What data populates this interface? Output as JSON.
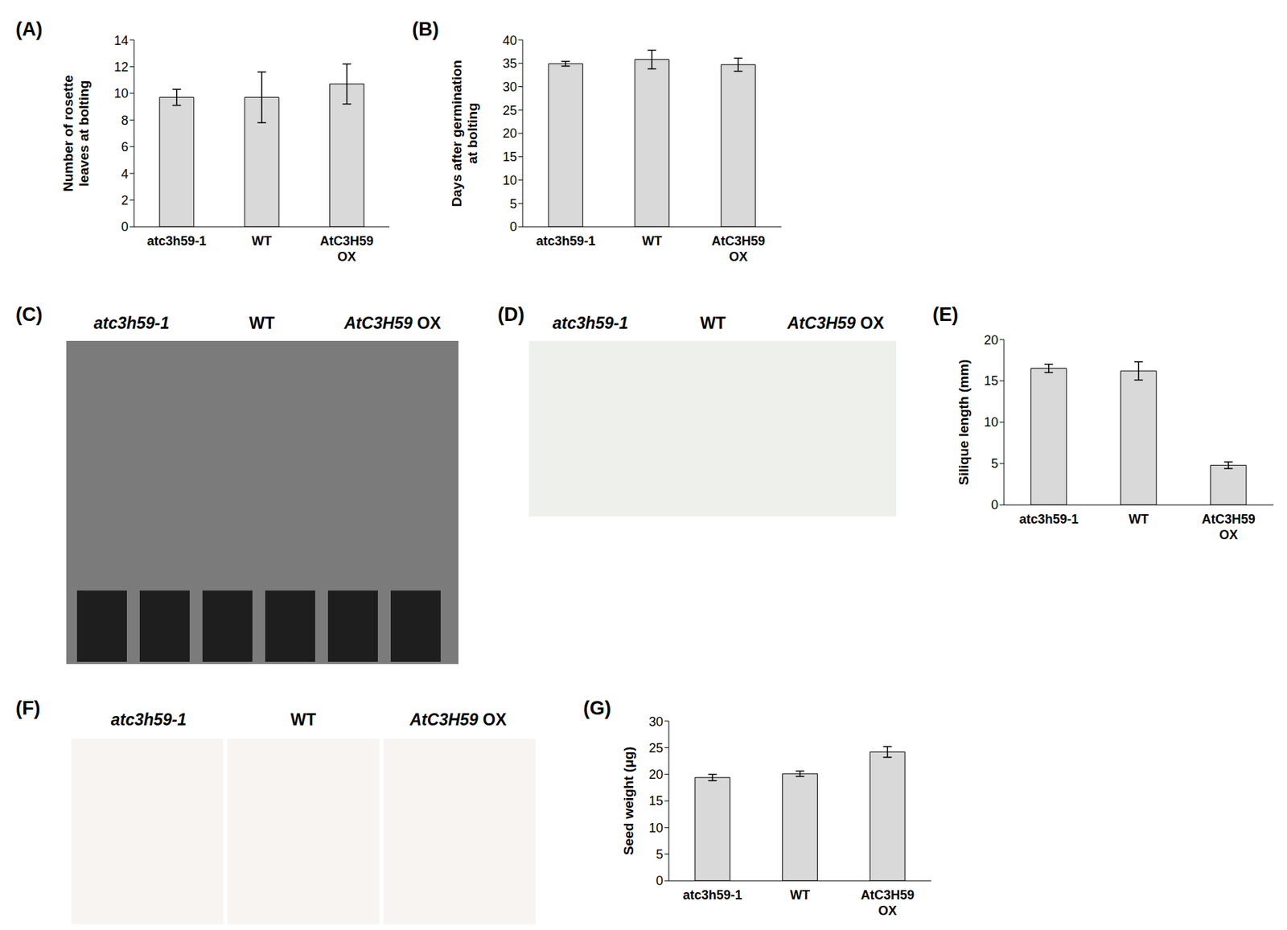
{
  "chart_data": [
    {
      "type": "bar",
      "title": "(A)",
      "y_label": "Number of rosette leaves at bolting",
      "categories": [
        "atc3h59-1",
        "WT",
        "AtC3H59 OX"
      ],
      "values": [
        9.7,
        9.7,
        10.7
      ],
      "error": [
        0.6,
        1.9,
        1.5
      ],
      "color": "#d9d9d9",
      "ylim": [
        0,
        14
      ],
      "yticks": [
        0,
        2,
        4,
        6,
        8,
        10,
        12,
        14
      ],
      "grid": false
    },
    {
      "type": "bar",
      "title": "(B)",
      "y_label": "Days after germination at bolting",
      "categories": [
        "atc3h59-1",
        "WT",
        "AtC3H59 OX"
      ],
      "values": [
        34.9,
        35.8,
        34.7
      ],
      "error": [
        0.5,
        2.0,
        1.4
      ],
      "color": "#d9d9d9",
      "ylim": [
        0,
        40
      ],
      "yticks": [
        0,
        5,
        10,
        15,
        20,
        25,
        30,
        35,
        40
      ],
      "grid": false
    },
    {
      "type": "bar",
      "title": "(E)",
      "y_label": "Silique length (mm)",
      "categories": [
        "atc3h59-1",
        "WT",
        "AtC3H59 OX"
      ],
      "values": [
        16.5,
        16.2,
        4.8
      ],
      "error": [
        0.5,
        1.1,
        0.4
      ],
      "color": "#d9d9d9",
      "ylim": [
        0,
        20
      ],
      "yticks": [
        0,
        5,
        10,
        15,
        20
      ],
      "grid": false
    },
    {
      "type": "bar",
      "title": "(G)",
      "y_label": "Seed weight (μg)",
      "categories": [
        "atc3h59-1",
        "WT",
        "AtC3H59 OX"
      ],
      "values": [
        19.4,
        20.1,
        24.2
      ],
      "error": [
        0.6,
        0.5,
        1.0
      ],
      "color": "#d9d9d9",
      "ylim": [
        0,
        30
      ],
      "yticks": [
        0,
        5,
        10,
        15,
        20,
        25,
        30
      ],
      "grid": false
    }
  ],
  "images": [
    {
      "title": "(C)",
      "labels": [
        "atc3h59-1",
        "WT",
        "AtC3H59 OX"
      ]
    },
    {
      "title": "(D)",
      "labels": [
        "atc3h59-1",
        "WT",
        "AtC3H59 OX"
      ]
    },
    {
      "title": "(F)",
      "labels": [
        "atc3h59-1",
        "WT",
        "AtC3H59 OX"
      ]
    }
  ]
}
